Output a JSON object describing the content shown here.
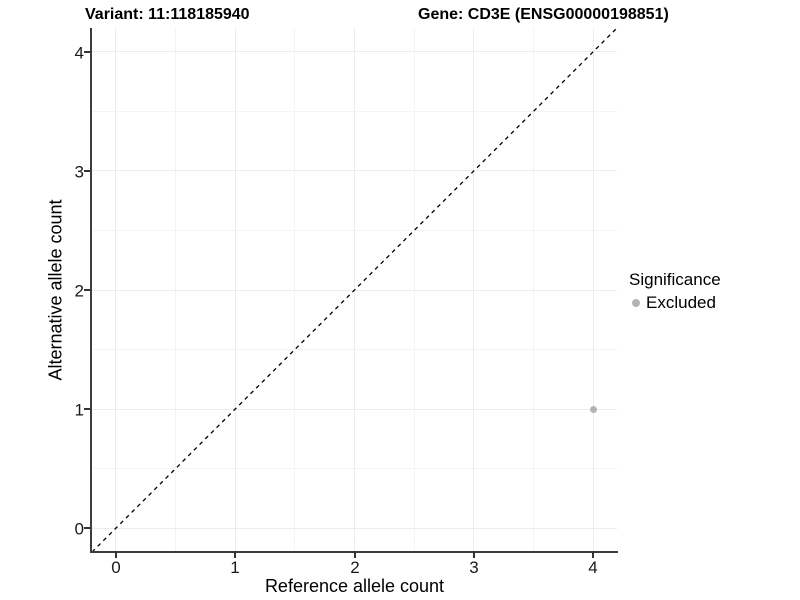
{
  "titles": {
    "variant": "Variant: 11:118185940",
    "gene": "Gene: CD3E (ENSG00000198851)"
  },
  "axes": {
    "x": {
      "label": "Reference allele count",
      "ticks": [
        "0",
        "1",
        "2",
        "3",
        "4"
      ]
    },
    "y": {
      "label": "Alternative allele count",
      "ticks": [
        "0",
        "1",
        "2",
        "3",
        "4"
      ]
    }
  },
  "legend": {
    "title": "Significance",
    "items": [
      {
        "label": "Excluded",
        "color": "#b3b3b3"
      }
    ]
  },
  "colors": {
    "background": "#ffffff",
    "axis_line": "#3d3d3d",
    "grid_major": "#ececec",
    "grid_minor": "#f4f4f4",
    "point_excluded": "#b3b3b3",
    "abline": "#000000"
  },
  "chart_data": {
    "type": "scatter",
    "title": "Variant: 11:118185940   |   Gene: CD3E (ENSG00000198851)",
    "xlabel": "Reference allele count",
    "ylabel": "Alternative allele count",
    "xlim": [
      -0.2,
      4.2
    ],
    "ylim": [
      -0.2,
      4.2
    ],
    "x_major_ticks": [
      0,
      1,
      2,
      3,
      4
    ],
    "y_major_ticks": [
      0,
      1,
      2,
      3,
      4
    ],
    "x_minor_ticks": [
      0.5,
      1.5,
      2.5,
      3.5
    ],
    "y_minor_ticks": [
      0.5,
      1.5,
      2.5,
      3.5
    ],
    "grid": true,
    "legend_position": "right",
    "series": [
      {
        "name": "Excluded",
        "color": "#b3b3b3",
        "point_radius": 3.5,
        "points": [
          {
            "x": 4,
            "y": 1
          }
        ]
      }
    ],
    "reference_line": {
      "slope": 1,
      "intercept": 0,
      "style": "dashed",
      "color": "#000000",
      "width": 1.3
    }
  }
}
